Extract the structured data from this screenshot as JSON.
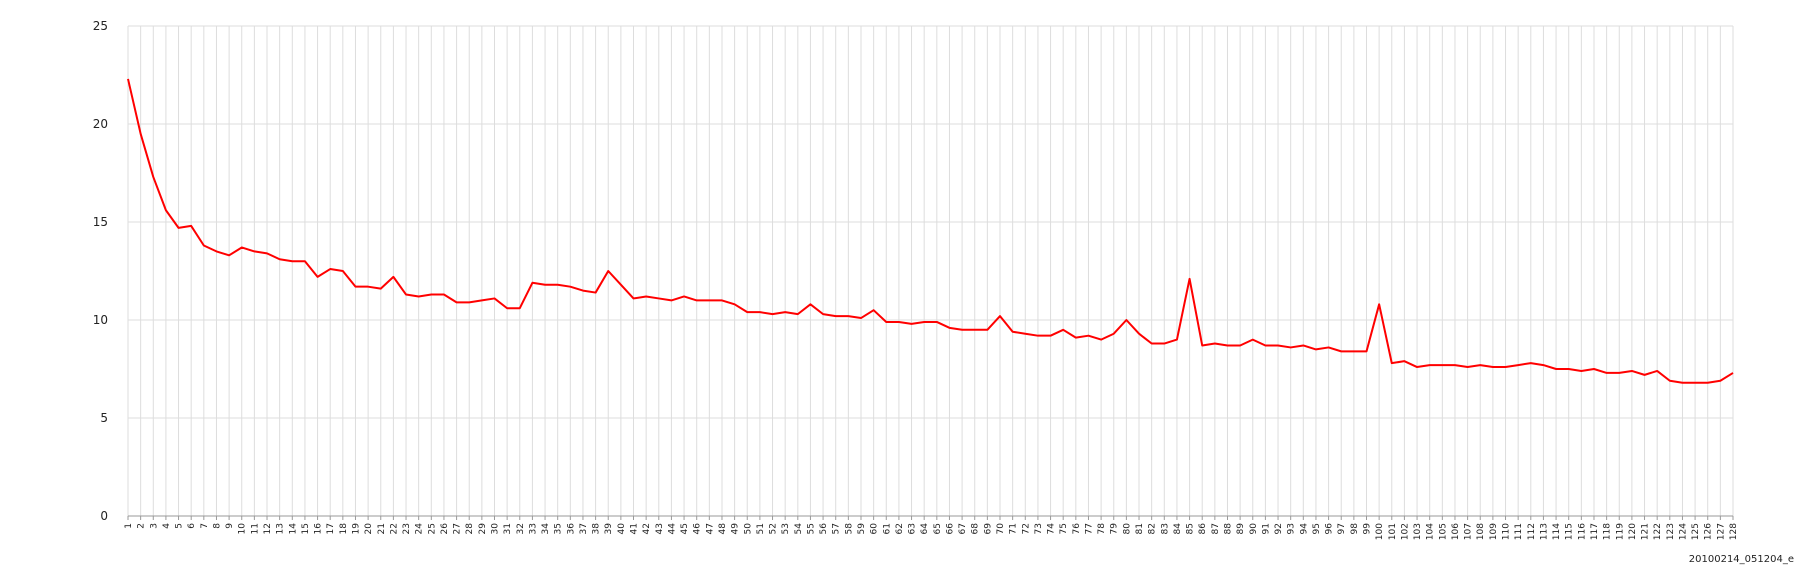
{
  "chart_data": {
    "type": "line",
    "categories": [
      "1",
      "2",
      "3",
      "4",
      "5",
      "6",
      "7",
      "8",
      "9",
      "10",
      "11",
      "12",
      "13",
      "14",
      "15",
      "16",
      "17",
      "18",
      "19",
      "20",
      "21",
      "22",
      "23",
      "24",
      "25",
      "26",
      "27",
      "28",
      "29",
      "30",
      "31",
      "32",
      "33",
      "34",
      "35",
      "36",
      "37",
      "38",
      "39",
      "40",
      "41",
      "42",
      "43",
      "44",
      "45",
      "46",
      "47",
      "48",
      "49",
      "50",
      "51",
      "52",
      "53",
      "54",
      "55",
      "56",
      "57",
      "58",
      "59",
      "60",
      "61",
      "62",
      "63",
      "64",
      "65",
      "66",
      "67",
      "68",
      "69",
      "70",
      "71",
      "72",
      "73",
      "74",
      "75",
      "76",
      "77",
      "78",
      "79",
      "80",
      "81",
      "82",
      "83",
      "84",
      "85",
      "86",
      "87",
      "88",
      "89",
      "90",
      "91",
      "92",
      "93",
      "94",
      "95",
      "96",
      "97",
      "98",
      "99",
      "100",
      "101",
      "102",
      "103",
      "104",
      "105",
      "106",
      "107",
      "108",
      "109",
      "110",
      "111",
      "112",
      "113",
      "114",
      "115",
      "116",
      "117",
      "118",
      "119",
      "120",
      "121",
      "122",
      "123",
      "124",
      "125",
      "126",
      "127",
      "128"
    ],
    "values": [
      22.3,
      19.5,
      17.3,
      15.6,
      14.7,
      14.8,
      13.8,
      13.5,
      13.3,
      13.7,
      13.5,
      13.4,
      13.1,
      13.0,
      13.0,
      12.2,
      12.6,
      12.5,
      11.7,
      11.7,
      11.6,
      12.2,
      11.3,
      11.2,
      11.3,
      11.3,
      10.9,
      10.9,
      11.0,
      11.1,
      10.6,
      10.6,
      11.9,
      11.8,
      11.8,
      11.7,
      11.5,
      11.4,
      12.5,
      11.8,
      11.1,
      11.2,
      11.1,
      11.0,
      11.2,
      11.0,
      11.0,
      11.0,
      10.8,
      10.4,
      10.4,
      10.3,
      10.4,
      10.3,
      10.8,
      10.3,
      10.2,
      10.2,
      10.1,
      10.5,
      9.9,
      9.9,
      9.8,
      9.9,
      9.9,
      9.6,
      9.5,
      9.5,
      9.5,
      10.2,
      9.4,
      9.3,
      9.2,
      9.2,
      9.5,
      9.1,
      9.2,
      9.0,
      9.3,
      10.0,
      9.3,
      8.8,
      8.8,
      9.0,
      12.1,
      8.7,
      8.8,
      8.7,
      8.7,
      9.0,
      8.7,
      8.7,
      8.6,
      8.7,
      8.5,
      8.6,
      8.4,
      8.4,
      8.4,
      10.8,
      7.8,
      7.9,
      7.6,
      7.7,
      7.7,
      7.7,
      7.6,
      7.7,
      7.6,
      7.6,
      7.7,
      7.8,
      7.7,
      7.5,
      7.5,
      7.4,
      7.5,
      7.3,
      7.3,
      7.4,
      7.2,
      7.4,
      6.9,
      6.8,
      6.8,
      6.8,
      6.9,
      7.3
    ],
    "color": "#ff0000",
    "ylim": [
      0,
      25
    ],
    "yticks": [
      0,
      5,
      10,
      15,
      20,
      25
    ],
    "grid": true,
    "footer": "20100214_051204_e"
  }
}
